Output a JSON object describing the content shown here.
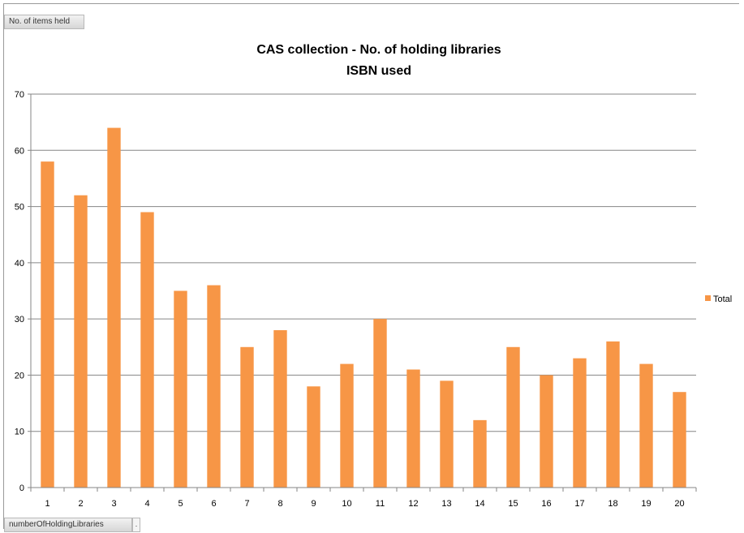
{
  "header": {
    "field_button": "No. of items held"
  },
  "footer": {
    "field_button": "numberOfHoldingLibraries",
    "dropdown_glyph": "."
  },
  "chart_data": {
    "type": "bar",
    "title": "CAS collection - No. of holding libraries",
    "subtitle": "ISBN used",
    "xlabel": "",
    "ylabel": "",
    "categories": [
      "1",
      "2",
      "3",
      "4",
      "5",
      "6",
      "7",
      "8",
      "9",
      "10",
      "11",
      "12",
      "13",
      "14",
      "15",
      "16",
      "17",
      "18",
      "19",
      "20"
    ],
    "series": [
      {
        "name": "Total",
        "values": [
          58,
          52,
          64,
          49,
          35,
          36,
          25,
          28,
          18,
          22,
          30,
          21,
          19,
          12,
          25,
          20,
          23,
          26,
          22,
          17
        ]
      }
    ],
    "ylim": [
      0,
      70
    ],
    "yticks": [
      0,
      10,
      20,
      30,
      40,
      50,
      60,
      70
    ],
    "grid": true,
    "legend_position": "right",
    "bar_color": "#F79646",
    "gridline_color": "#868686"
  }
}
